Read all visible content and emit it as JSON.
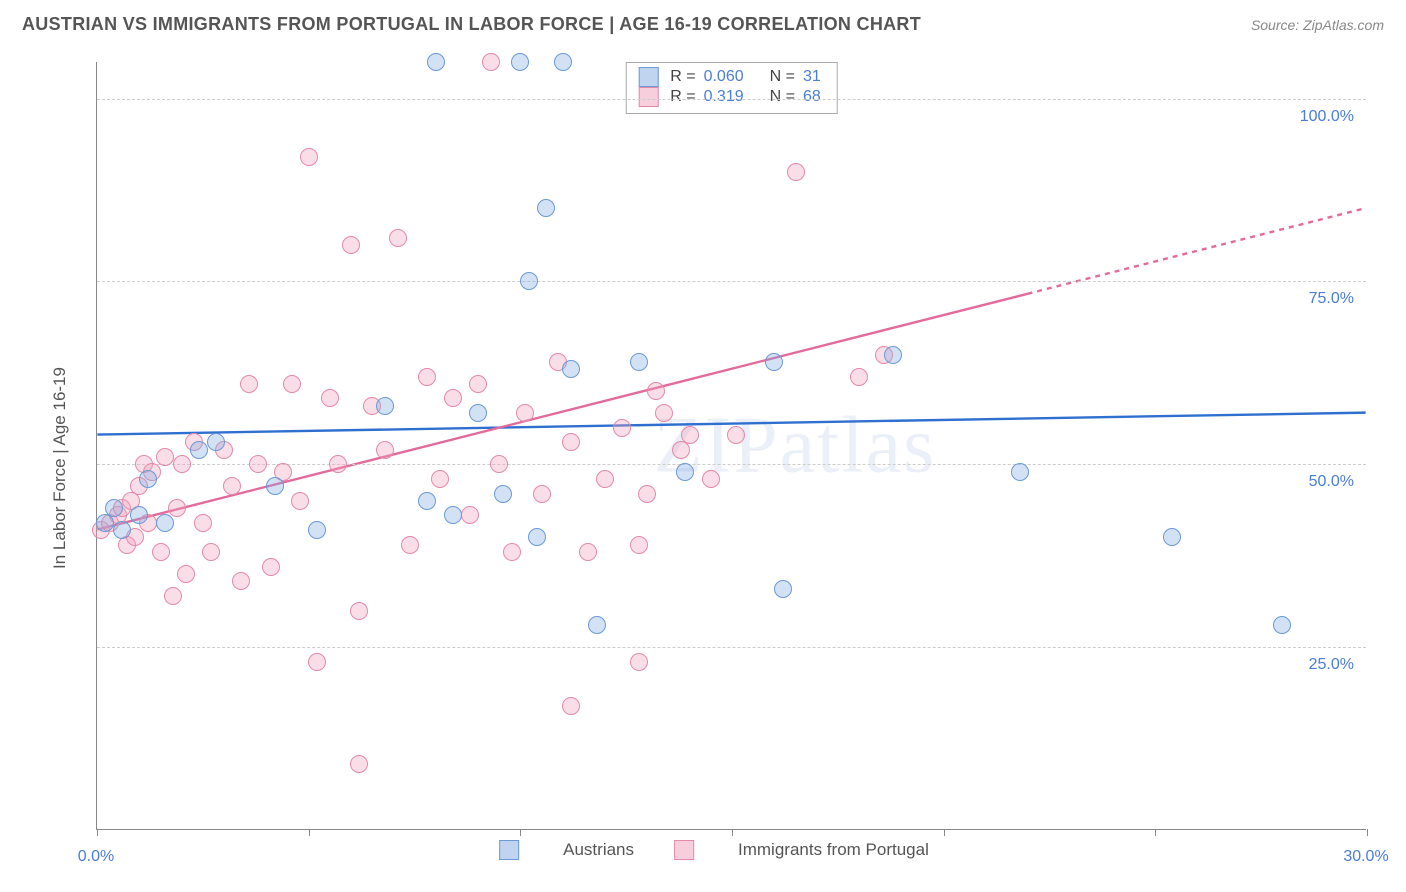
{
  "header": {
    "title": "AUSTRIAN VS IMMIGRANTS FROM PORTUGAL IN LABOR FORCE | AGE 16-19 CORRELATION CHART",
    "source": "Source: ZipAtlas.com"
  },
  "chart": {
    "type": "scatter",
    "ylabel": "In Labor Force | Age 16-19",
    "watermark": "ZIPatlas",
    "xlim": [
      0,
      30
    ],
    "ylim": [
      0,
      105
    ],
    "x_ticks_major": [
      0,
      5,
      10,
      15,
      20,
      25,
      30
    ],
    "x_tick_labels": [
      {
        "v": 0,
        "t": "0.0%"
      },
      {
        "v": 30,
        "t": "30.0%"
      }
    ],
    "y_grid": [
      25,
      50,
      75,
      100
    ],
    "y_tick_labels": [
      {
        "v": 25,
        "t": "25.0%"
      },
      {
        "v": 50,
        "t": "50.0%"
      },
      {
        "v": 75,
        "t": "75.0%"
      },
      {
        "v": 100,
        "t": "100.0%"
      }
    ],
    "background_color": "#ffffff",
    "grid_color": "#cccccc",
    "axis_color": "#888888",
    "tick_label_color": "#4a7dd6",
    "label_color": "#555555",
    "point_radius": 9,
    "series": {
      "austrians": {
        "label": "Austrians",
        "fill": "rgba(130,170,225,0.35)",
        "stroke": "#6b99d6",
        "line_color": "#2f6fd0",
        "line_width": 2.4,
        "R": "0.060",
        "N": "31",
        "trend": {
          "x1": 0,
          "y1": 54,
          "x2": 30,
          "y2": 57
        },
        "points": [
          [
            0.2,
            42
          ],
          [
            0.4,
            44
          ],
          [
            0.6,
            41
          ],
          [
            1.0,
            43
          ],
          [
            1.2,
            48
          ],
          [
            1.6,
            42
          ],
          [
            2.4,
            52
          ],
          [
            2.8,
            53
          ],
          [
            4.2,
            47
          ],
          [
            5.2,
            41
          ],
          [
            6.8,
            58
          ],
          [
            7.8,
            45
          ],
          [
            8.0,
            105
          ],
          [
            8.4,
            43
          ],
          [
            9.0,
            57
          ],
          [
            9.6,
            46
          ],
          [
            10.0,
            105
          ],
          [
            10.2,
            75
          ],
          [
            10.4,
            40
          ],
          [
            10.6,
            85
          ],
          [
            11.0,
            105
          ],
          [
            11.2,
            63
          ],
          [
            11.8,
            28
          ],
          [
            12.8,
            64
          ],
          [
            13.9,
            49
          ],
          [
            16.0,
            64
          ],
          [
            16.2,
            33
          ],
          [
            18.8,
            65
          ],
          [
            21.8,
            49
          ],
          [
            25.4,
            40
          ],
          [
            28.0,
            28
          ]
        ]
      },
      "portugal": {
        "label": "Immigrants from Portugal",
        "fill": "rgba(240,160,185,0.35)",
        "stroke": "#e48aa8",
        "line_color": "#e36a9a",
        "line_width": 2.4,
        "R": "0.319",
        "N": "68",
        "trend": {
          "x1": 0,
          "y1": 41,
          "x2": 30,
          "y2": 85
        },
        "trend_dash_from_x": 22,
        "points": [
          [
            0.1,
            41
          ],
          [
            0.3,
            42
          ],
          [
            0.5,
            43
          ],
          [
            0.6,
            44
          ],
          [
            0.7,
            39
          ],
          [
            0.8,
            45
          ],
          [
            0.9,
            40
          ],
          [
            1.0,
            47
          ],
          [
            1.1,
            50
          ],
          [
            1.2,
            42
          ],
          [
            1.3,
            49
          ],
          [
            1.5,
            38
          ],
          [
            1.6,
            51
          ],
          [
            1.8,
            32
          ],
          [
            1.9,
            44
          ],
          [
            2.0,
            50
          ],
          [
            2.1,
            35
          ],
          [
            2.3,
            53
          ],
          [
            2.5,
            42
          ],
          [
            2.7,
            38
          ],
          [
            3.0,
            52
          ],
          [
            3.2,
            47
          ],
          [
            3.4,
            34
          ],
          [
            3.6,
            61
          ],
          [
            3.8,
            50
          ],
          [
            4.1,
            36
          ],
          [
            4.4,
            49
          ],
          [
            4.6,
            61
          ],
          [
            4.8,
            45
          ],
          [
            5.0,
            92
          ],
          [
            5.2,
            23
          ],
          [
            5.5,
            59
          ],
          [
            5.7,
            50
          ],
          [
            6.0,
            80
          ],
          [
            6.2,
            30
          ],
          [
            6.2,
            9
          ],
          [
            6.5,
            58
          ],
          [
            6.8,
            52
          ],
          [
            7.1,
            81
          ],
          [
            7.4,
            39
          ],
          [
            7.8,
            62
          ],
          [
            8.1,
            48
          ],
          [
            8.4,
            59
          ],
          [
            8.8,
            43
          ],
          [
            9.0,
            61
          ],
          [
            9.3,
            105
          ],
          [
            9.5,
            50
          ],
          [
            9.8,
            38
          ],
          [
            10.1,
            57
          ],
          [
            10.5,
            46
          ],
          [
            10.9,
            64
          ],
          [
            11.2,
            53
          ],
          [
            11.2,
            17
          ],
          [
            11.6,
            38
          ],
          [
            12.0,
            48
          ],
          [
            12.4,
            55
          ],
          [
            12.8,
            23
          ],
          [
            12.8,
            39
          ],
          [
            13.0,
            46
          ],
          [
            13.2,
            60
          ],
          [
            13.4,
            57
          ],
          [
            13.8,
            52
          ],
          [
            14.0,
            54
          ],
          [
            14.5,
            48
          ],
          [
            15.1,
            54
          ],
          [
            16.5,
            90
          ],
          [
            18.0,
            62
          ],
          [
            18.6,
            65
          ]
        ]
      }
    }
  },
  "legend_box": {
    "row1": {
      "sq_fill": "rgba(130,170,225,0.5)",
      "sq_stroke": "#6b99d6"
    },
    "row2": {
      "sq_fill": "rgba(240,160,185,0.5)",
      "sq_stroke": "#e48aa8"
    }
  }
}
